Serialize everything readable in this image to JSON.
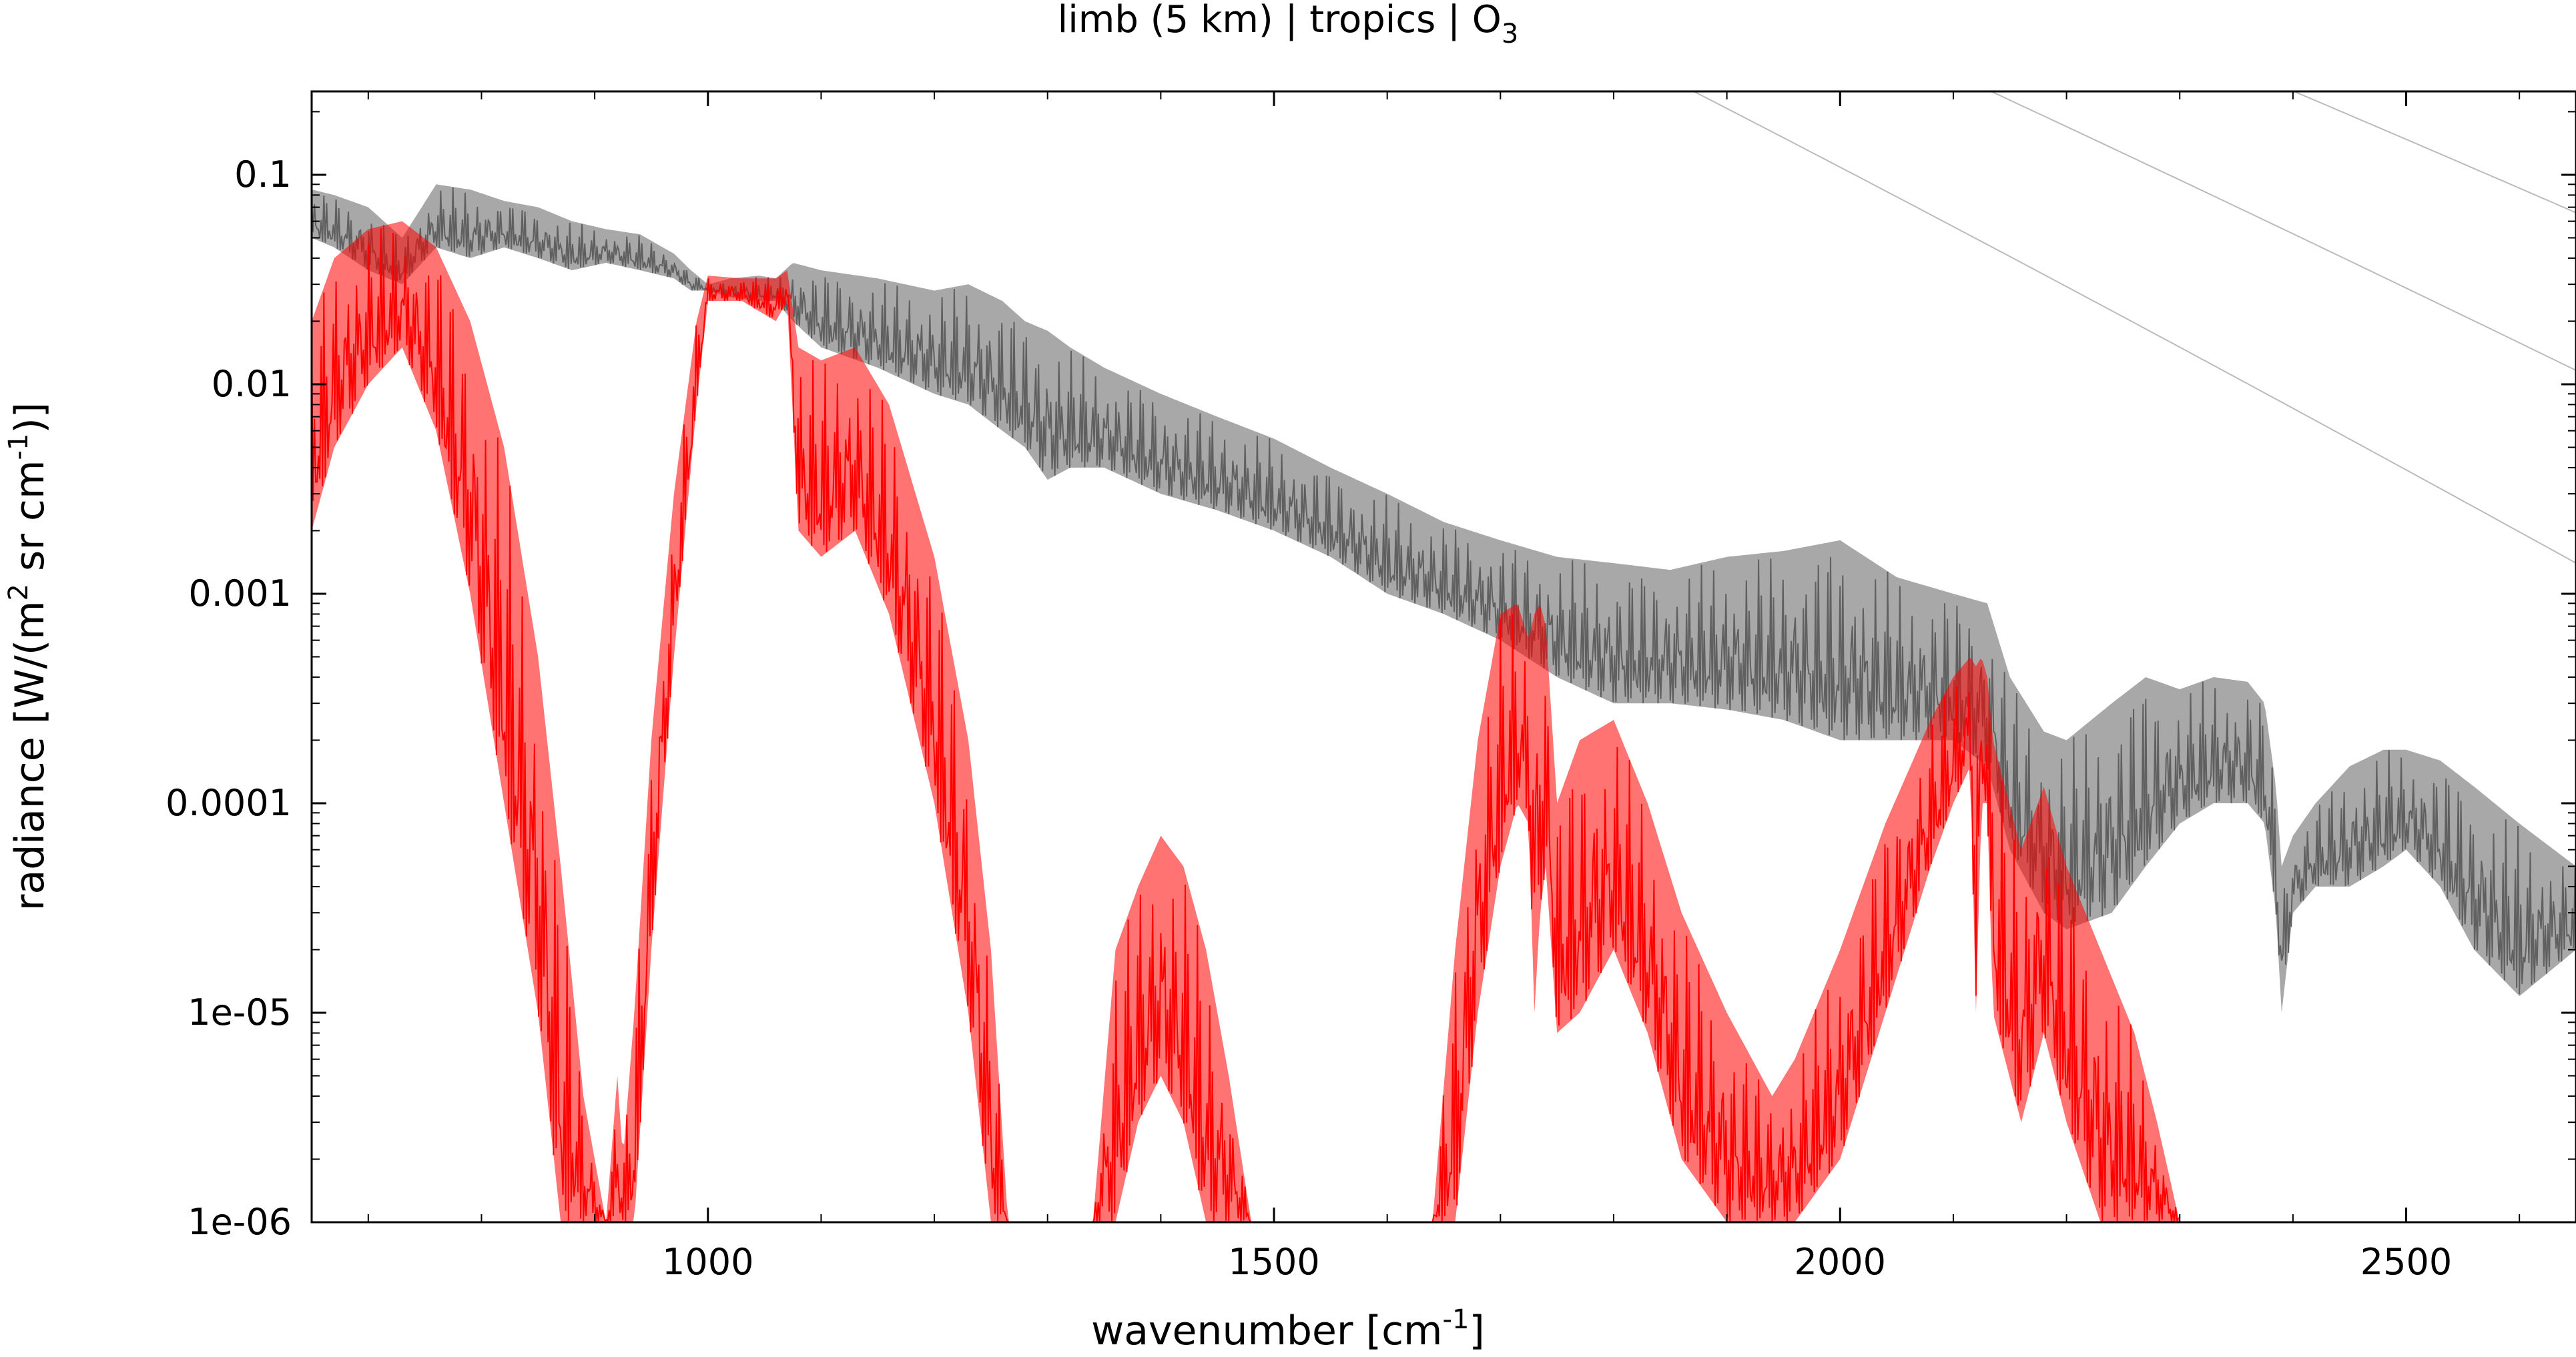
{
  "chart_data": {
    "type": "line",
    "title": "limb (5 km) | tropics | O",
    "title_subscript": "3",
    "xlabel": "wavenumber [cm",
    "xlabel_sup": "-1",
    "xlabel_end": "]",
    "ylabel_parts": [
      "radiance [W/(m",
      "2",
      " sr cm",
      "-1",
      ")]"
    ],
    "xlim": [
      650,
      2650
    ],
    "ylim": [
      1e-06,
      0.25
    ],
    "yscale": "log",
    "grid": false,
    "legend": "none",
    "x_ticks": [
      1000,
      1500,
      2000,
      2500
    ],
    "x_tick_labels": [
      "1000",
      "1500",
      "2000",
      "2500"
    ],
    "y_ticks": [
      1e-06,
      1e-05,
      0.0001,
      0.001,
      0.01,
      0.1
    ],
    "y_tick_labels": [
      "1e-06",
      "1e-05",
      "0.0001",
      "0.001",
      "0.01",
      "0.1"
    ],
    "planck_reference_curves": {
      "color": "#bbbbbb",
      "temperatures_K": [
        180,
        200,
        220,
        240,
        260,
        280,
        300,
        320,
        340
      ]
    },
    "series": [
      {
        "color": "#606060",
        "x": [
          650,
          670,
          700,
          730,
          760,
          790,
          820,
          850,
          880,
          910,
          940,
          970,
          985,
          1000,
          1020,
          1045,
          1060,
          1075,
          1100,
          1150,
          1200,
          1230,
          1260,
          1280,
          1300,
          1320,
          1350,
          1400,
          1450,
          1500,
          1550,
          1600,
          1650,
          1700,
          1750,
          1800,
          1850,
          1900,
          1950,
          2000,
          2050,
          2100,
          2130,
          2150,
          2180,
          2200,
          2240,
          2270,
          2300,
          2330,
          2360,
          2375,
          2385,
          2390,
          2400,
          2420,
          2450,
          2480,
          2500,
          2530,
          2560,
          2600,
          2650
        ],
        "y_upper": [
          0.085,
          0.08,
          0.07,
          0.05,
          0.09,
          0.085,
          0.075,
          0.07,
          0.06,
          0.055,
          0.052,
          0.042,
          0.035,
          0.03,
          0.032,
          0.033,
          0.032,
          0.038,
          0.035,
          0.032,
          0.028,
          0.03,
          0.025,
          0.02,
          0.018,
          0.015,
          0.012,
          0.009,
          0.007,
          0.0055,
          0.004,
          0.003,
          0.0022,
          0.0018,
          0.0015,
          0.0014,
          0.0013,
          0.0015,
          0.0016,
          0.0018,
          0.0012,
          0.001,
          0.0009,
          0.0004,
          0.00022,
          0.0002,
          0.0003,
          0.0004,
          0.00035,
          0.0004,
          0.00038,
          0.0003,
          0.00012,
          5e-05,
          7e-05,
          0.0001,
          0.00015,
          0.00018,
          0.00018,
          0.00016,
          0.00012,
          8e-05,
          5e-05
        ],
        "y_lower": [
          0.05,
          0.045,
          0.035,
          0.03,
          0.045,
          0.04,
          0.045,
          0.04,
          0.035,
          0.038,
          0.035,
          0.032,
          0.028,
          0.028,
          0.026,
          0.025,
          0.025,
          0.02,
          0.015,
          0.012,
          0.009,
          0.008,
          0.006,
          0.005,
          0.0035,
          0.004,
          0.004,
          0.003,
          0.0025,
          0.002,
          0.0015,
          0.001,
          0.0008,
          0.0006,
          0.0004,
          0.0003,
          0.0003,
          0.00028,
          0.00025,
          0.0002,
          0.0002,
          0.0002,
          0.00015,
          6e-05,
          3e-05,
          2.5e-05,
          3e-05,
          5e-05,
          8e-05,
          0.0001,
          0.0001,
          8e-05,
          3e-05,
          1e-05,
          3e-05,
          4e-05,
          4e-05,
          5e-05,
          6e-05,
          4e-05,
          2e-05,
          1.2e-05,
          2e-05
        ]
      },
      {
        "color": "#ff0000",
        "x": [
          650,
          670,
          700,
          730,
          760,
          790,
          820,
          850,
          870,
          890,
          910,
          920,
          925,
          935,
          950,
          970,
          990,
          1000,
          1030,
          1060,
          1070,
          1080,
          1100,
          1130,
          1160,
          1200,
          1230,
          1250,
          1265,
          1300,
          1340,
          1360,
          1380,
          1400,
          1420,
          1440,
          1460,
          1480,
          1500,
          1640,
          1660,
          1680,
          1700,
          1715,
          1725,
          1730,
          1735,
          1740,
          1750,
          1770,
          1800,
          1830,
          1860,
          1900,
          1940,
          1960,
          2000,
          2040,
          2080,
          2100,
          2115,
          2120,
          2125,
          2130,
          2135,
          2160,
          2180,
          2200,
          2230,
          2260,
          2280,
          2300
        ],
        "y_upper": [
          0.02,
          0.04,
          0.055,
          0.06,
          0.045,
          0.02,
          0.005,
          0.0005,
          5e-05,
          4e-06,
          1e-06,
          5e-06,
          2e-06,
          1e-05,
          0.0002,
          0.003,
          0.02,
          0.033,
          0.032,
          0.032,
          0.035,
          0.015,
          0.013,
          0.015,
          0.008,
          0.0015,
          0.0002,
          2e-05,
          1e-06,
          1e-06,
          1e-06,
          2e-05,
          4e-05,
          7e-05,
          5e-05,
          2e-05,
          5e-06,
          1e-06,
          1e-06,
          1e-06,
          2e-05,
          0.0002,
          0.0008,
          0.0009,
          0.0006,
          0.0008,
          0.0009,
          0.0007,
          0.0001,
          0.0002,
          0.00025,
          0.0001,
          3e-05,
          1e-05,
          4e-06,
          6e-06,
          2e-05,
          8e-05,
          0.00025,
          0.0004,
          0.0005,
          0.00045,
          0.0005,
          0.0004,
          0.0002,
          6e-05,
          0.00012,
          5e-05,
          2e-05,
          8e-06,
          3e-06,
          1e-06
        ],
        "y_lower": [
          0.002,
          0.005,
          0.01,
          0.015,
          0.006,
          0.001,
          0.0001,
          1e-05,
          1e-06,
          1e-06,
          1e-06,
          1e-06,
          1e-06,
          1e-06,
          2e-05,
          0.0005,
          0.008,
          0.025,
          0.025,
          0.02,
          0.025,
          0.002,
          0.0015,
          0.002,
          0.0008,
          0.0001,
          1e-05,
          1e-06,
          1e-06,
          1e-06,
          1e-06,
          1e-06,
          3e-06,
          5e-06,
          3e-06,
          1e-06,
          1e-06,
          1e-06,
          1e-06,
          1e-06,
          1e-06,
          1e-05,
          5e-05,
          0.0001,
          8e-05,
          1e-05,
          3e-05,
          5e-05,
          8e-06,
          1e-05,
          2e-05,
          8e-06,
          2e-06,
          1e-06,
          1e-06,
          1e-06,
          2e-06,
          1e-05,
          5e-05,
          0.0001,
          0.00015,
          1e-05,
          0.0001,
          0.0001,
          1e-05,
          3e-06,
          8e-06,
          3e-06,
          1e-06,
          1e-06,
          1e-06,
          1e-06
        ]
      }
    ]
  }
}
